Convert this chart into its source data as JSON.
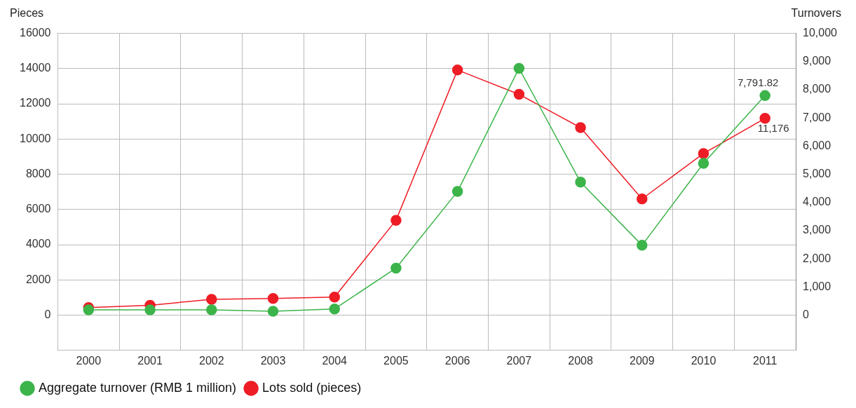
{
  "chart_data": {
    "type": "line",
    "ylabel": "Pieces",
    "y2label": "Turnovers",
    "categories": [
      "2000",
      "2001",
      "2002",
      "2003",
      "2004",
      "2005",
      "2006",
      "2007",
      "2008",
      "2009",
      "2010",
      "2011"
    ],
    "series": [
      {
        "name": "Lots sold (pieces)",
        "color": "#ee1c25",
        "values": [
          430,
          560,
          900,
          950,
          1030,
          5390,
          13920,
          12540,
          10650,
          6600,
          9180,
          11176
        ],
        "value_labels": [
          null,
          null,
          null,
          null,
          null,
          null,
          null,
          null,
          null,
          null,
          null,
          "11,176"
        ]
      },
      {
        "name": "Aggregate turnover (RMB 1 million)",
        "color": "#3cb44a",
        "axis": "y2",
        "values": [
          190,
          190,
          190,
          140,
          220,
          1670,
          4390,
          8760,
          4720,
          2480,
          5390,
          7791.82
        ],
        "value_labels": [
          null,
          null,
          null,
          null,
          null,
          null,
          null,
          null,
          null,
          null,
          null,
          "7,791.82"
        ]
      }
    ],
    "ylim": [
      -2000,
      16000
    ],
    "yticks": [
      0,
      2000,
      4000,
      6000,
      8000,
      10000,
      12000,
      14000,
      16000
    ],
    "y2lim": [
      -1250,
      10000
    ],
    "y2ticks": [
      {
        "value": 0,
        "label": "0"
      },
      {
        "value": 1000,
        "label": "1,000"
      },
      {
        "value": 2000,
        "label": "2,000"
      },
      {
        "value": 3000,
        "label": "3,000"
      },
      {
        "value": 4000,
        "label": "4,000"
      },
      {
        "value": 5000,
        "label": "5,000"
      },
      {
        "value": 6000,
        "label": "6,000"
      },
      {
        "value": 7000,
        "label": "7,000"
      },
      {
        "value": 8000,
        "label": "8,000"
      },
      {
        "value": 9000,
        "label": "9,000"
      },
      {
        "value": 10000,
        "label": "10,000"
      }
    ],
    "grid": true,
    "legend": "bottom left",
    "marker": "circle",
    "line_style": "solid"
  }
}
